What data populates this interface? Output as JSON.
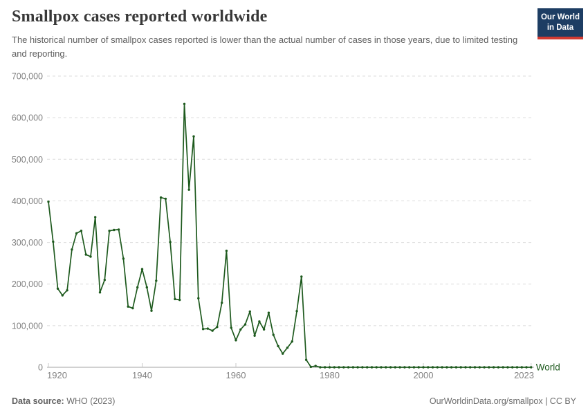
{
  "logo": {
    "line1": "Our World",
    "line2": "in Data",
    "bg_color": "#1d3d63",
    "accent_color": "#d13b32"
  },
  "footer": {
    "datasource_label": "Data source:",
    "datasource_value": "WHO (2023)",
    "attribution": "OurWorldinData.org/smallpox | CC BY"
  },
  "chart_data": {
    "type": "line",
    "title": "Smallpox cases reported worldwide",
    "subtitle": "The historical number of smallpox cases reported is lower than the actual number of cases in those years, due to limited testing and reporting.",
    "xlabel": "",
    "ylabel": "",
    "ylim": [
      0,
      700000
    ],
    "grid": "horizontal dashed",
    "legend_position": "end-of-line",
    "yticks": [
      0,
      100000,
      200000,
      300000,
      400000,
      500000,
      600000,
      700000
    ],
    "ytick_labels": [
      "0",
      "100,000",
      "200,000",
      "300,000",
      "400,000",
      "500,000",
      "600,000",
      "700,000"
    ],
    "xticks": [
      1920,
      1940,
      1960,
      1980,
      2000,
      2023
    ],
    "xtick_labels": [
      "1920",
      "1940",
      "1960",
      "1980",
      "2000",
      "2023"
    ],
    "x": [
      1920,
      1921,
      1922,
      1923,
      1924,
      1925,
      1926,
      1927,
      1928,
      1929,
      1930,
      1931,
      1932,
      1933,
      1934,
      1935,
      1936,
      1937,
      1938,
      1939,
      1940,
      1941,
      1942,
      1943,
      1944,
      1945,
      1946,
      1947,
      1948,
      1949,
      1950,
      1951,
      1952,
      1953,
      1954,
      1955,
      1956,
      1957,
      1958,
      1959,
      1960,
      1961,
      1962,
      1963,
      1964,
      1965,
      1966,
      1967,
      1968,
      1969,
      1970,
      1971,
      1972,
      1973,
      1974,
      1975,
      1976,
      1977,
      1978,
      1979,
      1980,
      1981,
      1982,
      1983,
      1984,
      1985,
      1986,
      1987,
      1988,
      1989,
      1990,
      1991,
      1992,
      1993,
      1994,
      1995,
      1996,
      1997,
      1998,
      1999,
      2000,
      2001,
      2002,
      2003,
      2004,
      2005,
      2006,
      2007,
      2008,
      2009,
      2010,
      2011,
      2012,
      2013,
      2014,
      2015,
      2016,
      2017,
      2018,
      2019,
      2020,
      2021,
      2022,
      2023
    ],
    "series": [
      {
        "name": "World",
        "color": "#1e5a1e",
        "values": [
          398000,
          302000,
          189000,
          173000,
          185000,
          283000,
          322000,
          328000,
          271000,
          266000,
          361000,
          180000,
          210000,
          328000,
          330000,
          331000,
          261000,
          146000,
          142000,
          192000,
          236000,
          192000,
          136000,
          208000,
          408000,
          405000,
          301000,
          164000,
          162000,
          633000,
          427000,
          555000,
          166000,
          92000,
          93000,
          88000,
          97000,
          155000,
          280000,
          95000,
          65000,
          91000,
          103000,
          134000,
          76000,
          110000,
          91000,
          131000,
          78000,
          51000,
          33000,
          47000,
          62000,
          135000,
          218000,
          18000,
          1000,
          3200,
          0,
          0,
          0,
          0,
          0,
          0,
          0,
          0,
          0,
          0,
          0,
          0,
          0,
          0,
          0,
          0,
          0,
          0,
          0,
          0,
          0,
          0,
          0,
          0,
          0,
          0,
          0,
          0,
          0,
          0,
          0,
          0,
          0,
          0,
          0,
          0,
          0,
          0,
          0,
          0,
          0,
          0,
          0,
          0,
          0,
          0
        ]
      }
    ]
  }
}
